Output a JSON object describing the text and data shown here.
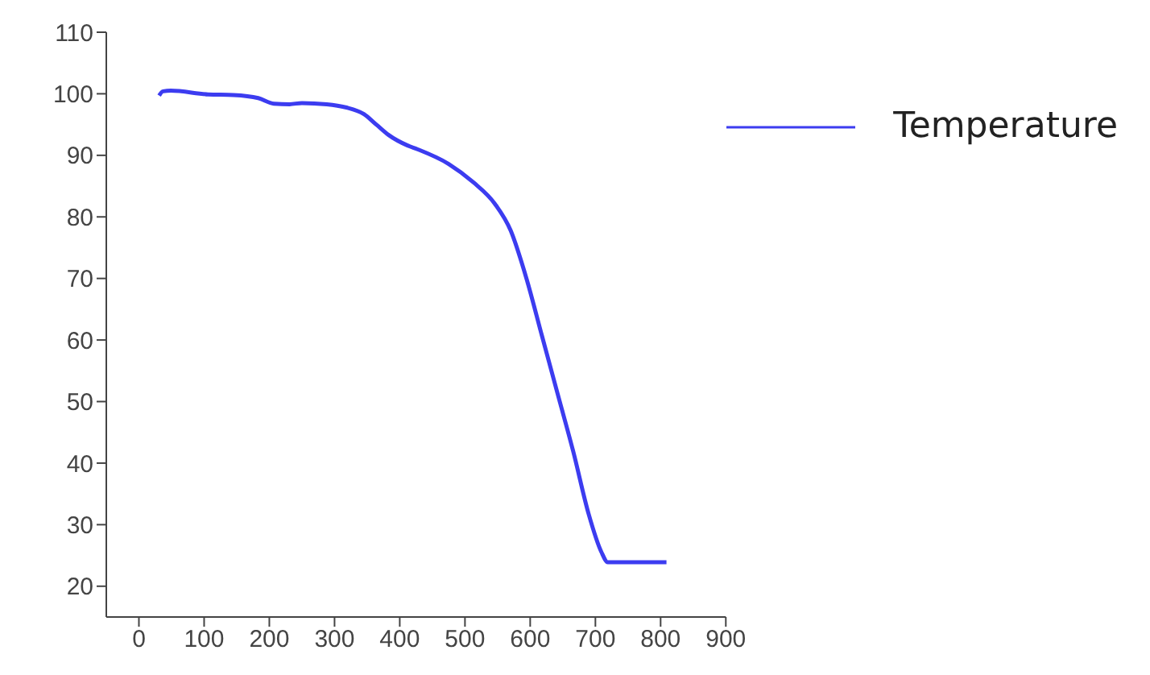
{
  "chart_data": {
    "type": "line",
    "xlim": [
      -50,
      900
    ],
    "ylim": [
      15,
      110
    ],
    "xticks": [
      0,
      100,
      200,
      300,
      400,
      500,
      600,
      700,
      800,
      900
    ],
    "yticks": [
      20,
      30,
      40,
      50,
      60,
      70,
      80,
      90,
      100,
      110
    ],
    "legend": "top right",
    "marker": "none",
    "line_style": "solid",
    "x": [
      31,
      37,
      49,
      106,
      145,
      183,
      207,
      231,
      250,
      288,
      317,
      345,
      364,
      383,
      412,
      427,
      475,
      513,
      546,
      570,
      594,
      618,
      642,
      666,
      690,
      709,
      719,
      809
    ],
    "series": [
      {
        "name": "Temperature",
        "color": "#3c3cf0",
        "values": [
          99.7,
          100.4,
          100.5,
          99.9,
          99.8,
          99.3,
          98.4,
          98.3,
          98.5,
          98.3,
          97.8,
          96.7,
          95,
          93.3,
          91.6,
          91.0,
          88.6,
          85.6,
          82.1,
          77.8,
          70.1,
          60.7,
          51.3,
          41.9,
          31.6,
          25.6,
          23.9,
          23.9
        ]
      }
    ]
  }
}
